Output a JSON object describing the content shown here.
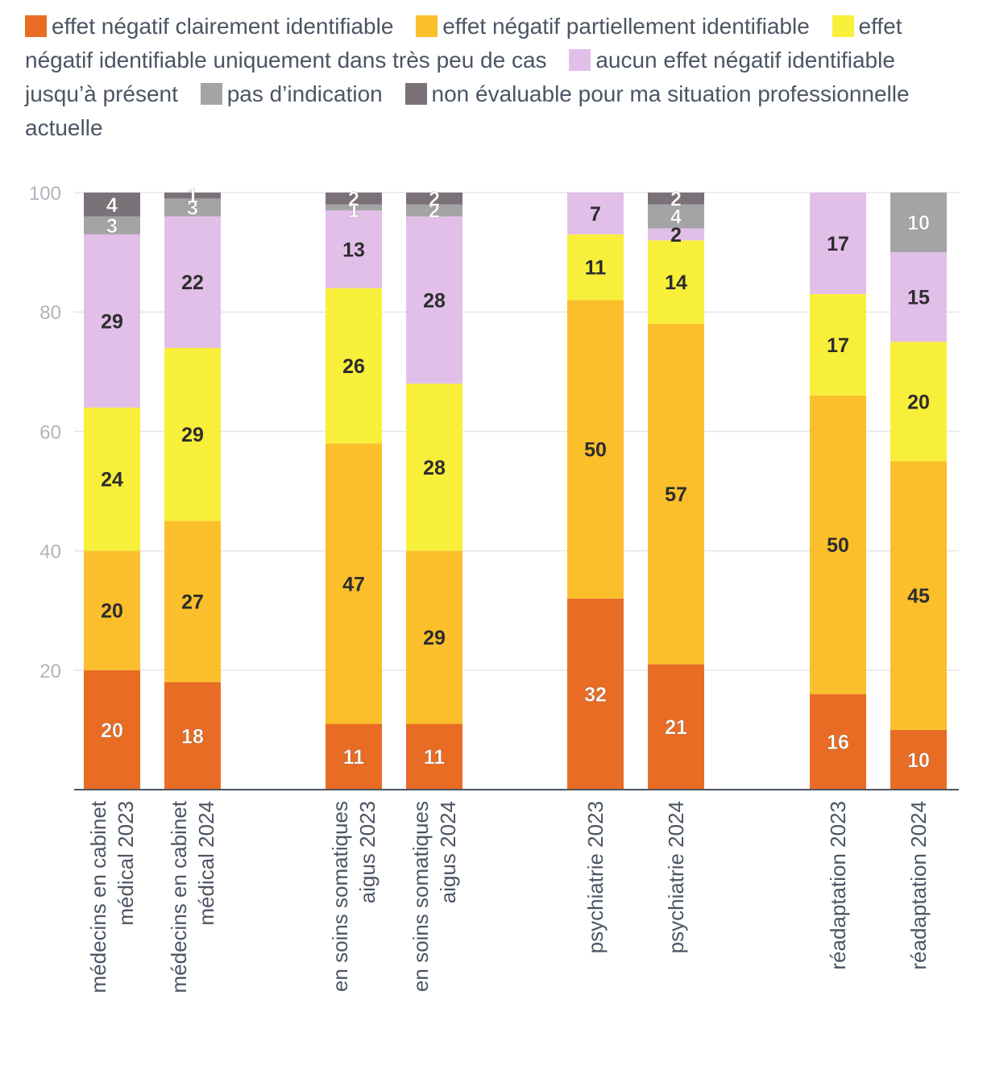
{
  "chart_data": {
    "type": "bar",
    "stacked": true,
    "ylim": [
      0,
      100
    ],
    "yticks": [
      20,
      40,
      60,
      80,
      100
    ],
    "grid": true,
    "legend_position": "top",
    "categories": [
      [
        "médecins en cabinet",
        "médical 2023"
      ],
      [
        "médecins en cabinet",
        "médical 2024"
      ],
      [
        "en soins somatiques",
        "aigus 2023"
      ],
      [
        "en soins somatiques",
        "aigus 2024"
      ],
      [
        "psychiatrie 2023"
      ],
      [
        "psychiatrie 2024"
      ],
      [
        "réadaptation 2023"
      ],
      [
        "réadaptation 2024"
      ]
    ],
    "series": [
      {
        "name": "effet négatif clairement identifiable",
        "color": "#e86c24",
        "label_color": "#ffffff",
        "values": [
          20,
          18,
          11,
          11,
          32,
          21,
          16,
          10
        ]
      },
      {
        "name": "effet négatif partiellement identifiable",
        "color": "#fbbf2c",
        "label_color": "#2d2d2d",
        "values": [
          20,
          27,
          47,
          29,
          50,
          57,
          50,
          45
        ]
      },
      {
        "name": "effet négatif identifiable uniquement dans très peu de cas",
        "color": "#f8ef3b",
        "label_color": "#2d2d2d",
        "values": [
          24,
          29,
          26,
          28,
          11,
          14,
          17,
          20
        ]
      },
      {
        "name": "aucun effet négatif identifiable jusqu’à présent",
        "color": "#e2bfe9",
        "label_color": "#2d2d2d",
        "values": [
          29,
          22,
          13,
          28,
          7,
          2,
          17,
          15
        ]
      },
      {
        "name": "pas d’indication",
        "color": "#a4a4a6",
        "label_color": "#ffffff",
        "values": [
          3,
          3,
          1,
          2,
          null,
          4,
          null,
          10
        ]
      },
      {
        "name": "non évaluable pour ma situation professionnelle actuelle",
        "color": "#7a7278",
        "label_color": "#ffffff",
        "values": [
          4,
          1,
          2,
          2,
          null,
          2,
          null,
          null
        ]
      }
    ]
  }
}
